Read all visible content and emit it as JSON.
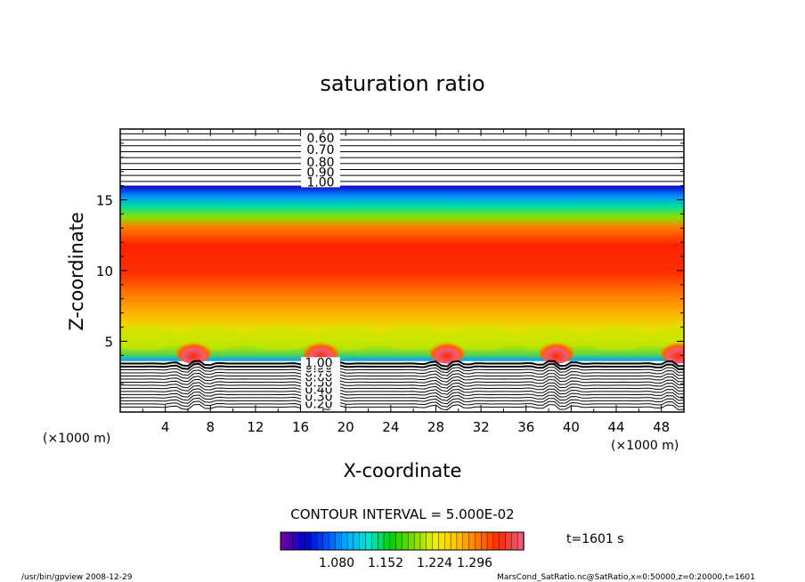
{
  "chart_data": {
    "type": "heatmap",
    "title": "saturation ratio",
    "xlabel": "X-coordinate",
    "ylabel": "Z-coordinate",
    "x_unit_left": "(×1000 m)",
    "x_unit_right": "(×1000 m)",
    "xlim": [
      0,
      50
    ],
    "ylim": [
      0,
      20
    ],
    "x_ticks": [
      4,
      8,
      12,
      16,
      20,
      24,
      28,
      32,
      36,
      40,
      44,
      48
    ],
    "y_ticks": [
      5,
      10,
      15
    ],
    "contour_labels_upper": [
      "0.60",
      "0.70",
      "0.80",
      "0.90",
      "1.00"
    ],
    "contour_labels_lower": [
      "0.20",
      "0.30",
      "0.40",
      "0.50",
      "0.60",
      "0.70",
      "0.80",
      "0.90",
      "1.00"
    ],
    "contour_interval_text": "CONTOUR INTERVAL = 5.000E-02",
    "time_text": "t=1601 s",
    "colorbar": {
      "tick_labels": [
        "1.080",
        "1.152",
        "1.224",
        "1.296"
      ],
      "colors": [
        "#6a00a8",
        "#0000c8",
        "#0050ff",
        "#00b4ff",
        "#00e6c8",
        "#00d200",
        "#7ddc00",
        "#f0f000",
        "#ffc800",
        "#ff7800",
        "#ff2a00",
        "#f05a78"
      ]
    },
    "features": {
      "saturated_layer_z": [
        3.6,
        16.0
      ],
      "peak_layer_z": [
        10.5,
        14.5
      ],
      "blob_centers_x": [
        6.5,
        17.8,
        29.0,
        38.7,
        49.5
      ]
    },
    "footer_left": "/usr/bin/gpview   2008-12-29",
    "footer_right": "MarsCond_SatRatio.nc@SatRatio,x=0:50000,z=0:20000,t=1601"
  }
}
